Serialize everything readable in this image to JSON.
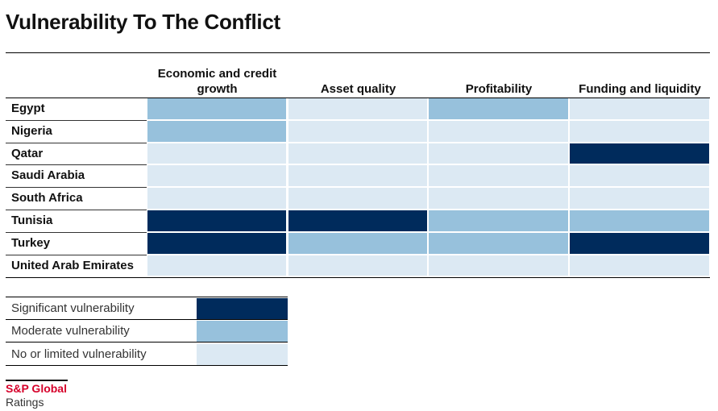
{
  "chart_data": {
    "type": "heatmap",
    "title": "Vulnerability To The Conflict",
    "columns": [
      "Economic and credit growth",
      "Asset quality",
      "Profitability",
      "Funding and liquidity"
    ],
    "rows": [
      "Egypt",
      "Nigeria",
      "Qatar",
      "Saudi Arabia",
      "South Africa",
      "Tunisia",
      "Turkey",
      "United Arab Emirates"
    ],
    "values": [
      [
        "Moderate vulnerability",
        "No or limited vulnerability",
        "Moderate vulnerability",
        "No or limited vulnerability"
      ],
      [
        "Moderate vulnerability",
        "No or limited vulnerability",
        "No or limited vulnerability",
        "No or limited vulnerability"
      ],
      [
        "No or limited vulnerability",
        "No or limited vulnerability",
        "No or limited vulnerability",
        "Significant vulnerability"
      ],
      [
        "No or limited vulnerability",
        "No or limited vulnerability",
        "No or limited vulnerability",
        "No or limited vulnerability"
      ],
      [
        "No or limited vulnerability",
        "No or limited vulnerability",
        "No or limited vulnerability",
        "No or limited vulnerability"
      ],
      [
        "Significant vulnerability",
        "Significant vulnerability",
        "Moderate vulnerability",
        "Moderate vulnerability"
      ],
      [
        "Significant vulnerability",
        "Moderate vulnerability",
        "Moderate vulnerability",
        "Significant vulnerability"
      ],
      [
        "No or limited vulnerability",
        "No or limited vulnerability",
        "No or limited vulnerability",
        "No or limited vulnerability"
      ]
    ],
    "legend": [
      {
        "label": "Significant vulnerability",
        "color": "#002b5c"
      },
      {
        "label": "Moderate vulnerability",
        "color": "#97c1dc"
      },
      {
        "label": "No or limited vulnerability",
        "color": "#dce9f3"
      }
    ]
  },
  "branding": {
    "brand": "S&P Global",
    "sub": "Ratings"
  }
}
